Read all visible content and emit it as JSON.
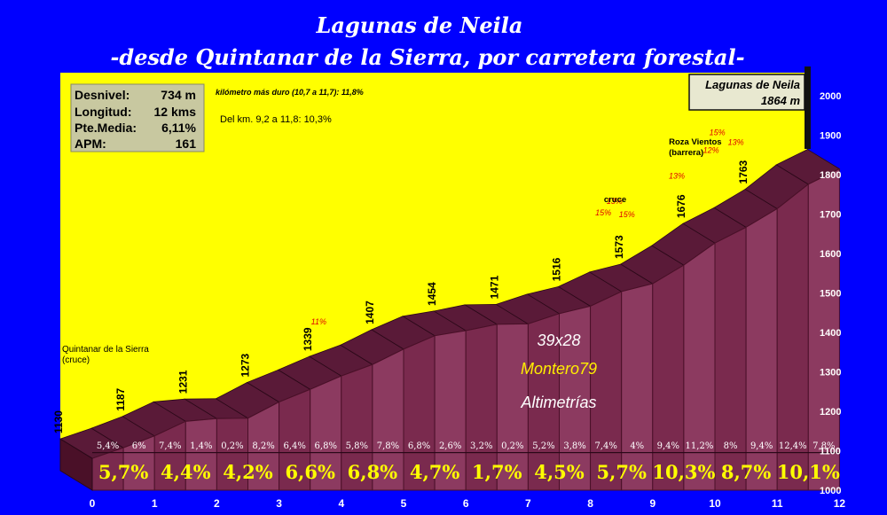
{
  "chart_data": {
    "type": "area",
    "title": "Lagunas de Neila",
    "subtitle": "-desde Quintanar de la Sierra, por carretera forestal-",
    "xlabel": "",
    "ylabel": "",
    "xlim": [
      0,
      12
    ],
    "ylim": [
      1000,
      2000
    ],
    "x_ticks": [
      "0",
      "1",
      "2",
      "3",
      "4",
      "5",
      "6",
      "7",
      "8",
      "9",
      "10",
      "11",
      "12"
    ],
    "y_ticks": [
      "1000",
      "1100",
      "1200",
      "1300",
      "1400",
      "1500",
      "1600",
      "1700",
      "1800",
      "1900",
      "2000"
    ],
    "points": [
      {
        "x": 0,
        "y": 1130,
        "label": "1130"
      },
      {
        "x": 0.5,
        "y": 1157
      },
      {
        "x": 1,
        "y": 1187,
        "label": "1187"
      },
      {
        "x": 1.5,
        "y": 1224
      },
      {
        "x": 2,
        "y": 1231,
        "label": "1231"
      },
      {
        "x": 2.5,
        "y": 1232
      },
      {
        "x": 3,
        "y": 1273,
        "label": "1273"
      },
      {
        "x": 3.5,
        "y": 1305
      },
      {
        "x": 4,
        "y": 1339,
        "label": "1339"
      },
      {
        "x": 4.5,
        "y": 1368
      },
      {
        "x": 5,
        "y": 1407,
        "label": "1407"
      },
      {
        "x": 5.5,
        "y": 1441
      },
      {
        "x": 6,
        "y": 1454,
        "label": "1454"
      },
      {
        "x": 6.5,
        "y": 1470
      },
      {
        "x": 7,
        "y": 1471,
        "label": "1471"
      },
      {
        "x": 7.5,
        "y": 1497
      },
      {
        "x": 8,
        "y": 1516,
        "label": "1516"
      },
      {
        "x": 8.5,
        "y": 1553
      },
      {
        "x": 9,
        "y": 1573,
        "label": "1573"
      },
      {
        "x": 9.5,
        "y": 1620
      },
      {
        "x": 10,
        "y": 1676,
        "label": "1676"
      },
      {
        "x": 10.5,
        "y": 1716
      },
      {
        "x": 11,
        "y": 1763,
        "label": "1763"
      },
      {
        "x": 11.5,
        "y": 1825
      },
      {
        "x": 12,
        "y": 1864
      }
    ],
    "segment_pcts": [
      "5,4%",
      "6%",
      "7,4%",
      "1,4%",
      "0,2%",
      "8,2%",
      "6,4%",
      "6,8%",
      "5,8%",
      "7,8%",
      "6,8%",
      "2,6%",
      "3,2%",
      "0,2%",
      "5,2%",
      "3,8%",
      "7,4%",
      "4%",
      "9,4%",
      "11,2%",
      "8%",
      "9,4%",
      "12,4%",
      "7,8%"
    ],
    "km_pcts": [
      "5,7%",
      "4,4%",
      "4,2%",
      "6,6%",
      "6,8%",
      "4,7%",
      "1,7%",
      "4,5%",
      "5,7%",
      "10,3%",
      "8,7%",
      "10,1%"
    ],
    "annotations": [
      {
        "x": 0,
        "text": "Quintanar de la Sierra",
        "text2": "(cruce)"
      },
      {
        "x": 9.1,
        "text": "cruce"
      },
      {
        "x": 10.6,
        "text": "Roza Vientos",
        "text2": "(barrera)"
      }
    ],
    "steep_labels": [
      {
        "x": 4.15,
        "y": 1420,
        "text": "11%"
      },
      {
        "x": 8.72,
        "y": 1697,
        "text": "15%"
      },
      {
        "x": 8.9,
        "y": 1726,
        "text": "13%"
      },
      {
        "x": 9.1,
        "y": 1692,
        "text": "15%"
      },
      {
        "x": 9.9,
        "y": 1790,
        "text": "13%"
      },
      {
        "x": 10.45,
        "y": 1855,
        "text": "12%"
      },
      {
        "x": 10.55,
        "y": 1900,
        "text": "15%"
      },
      {
        "x": 10.85,
        "y": 1875,
        "text": "13%"
      }
    ],
    "summit": {
      "name": "Lagunas de Neila",
      "altitude": "1864 m"
    }
  },
  "stats": [
    {
      "label": "Desnivel:",
      "value": "734 m"
    },
    {
      "label": "Longitud:",
      "value": "12 kms"
    },
    {
      "label": "Pte.Media:",
      "value": "6,11%"
    },
    {
      "label": "APM:",
      "value": "161"
    }
  ],
  "notes": {
    "hardest_km": "kilómetro más duro (10,7 a 11,7):  11,8%",
    "stretch": "Del km. 9,2 a 11,8:  10,3%"
  },
  "watermark": {
    "line1": "39x28",
    "line2": "Montero79",
    "line3": "Altimetrías",
    "line2_color": "#ffee00",
    "text_color": "#ffffff"
  },
  "colors": {
    "background": "#0000ff",
    "sky": "#ffff00",
    "profile": "#7a2a4e",
    "profile_light": "#8c3a60",
    "profile_dark": "#4a1028"
  }
}
